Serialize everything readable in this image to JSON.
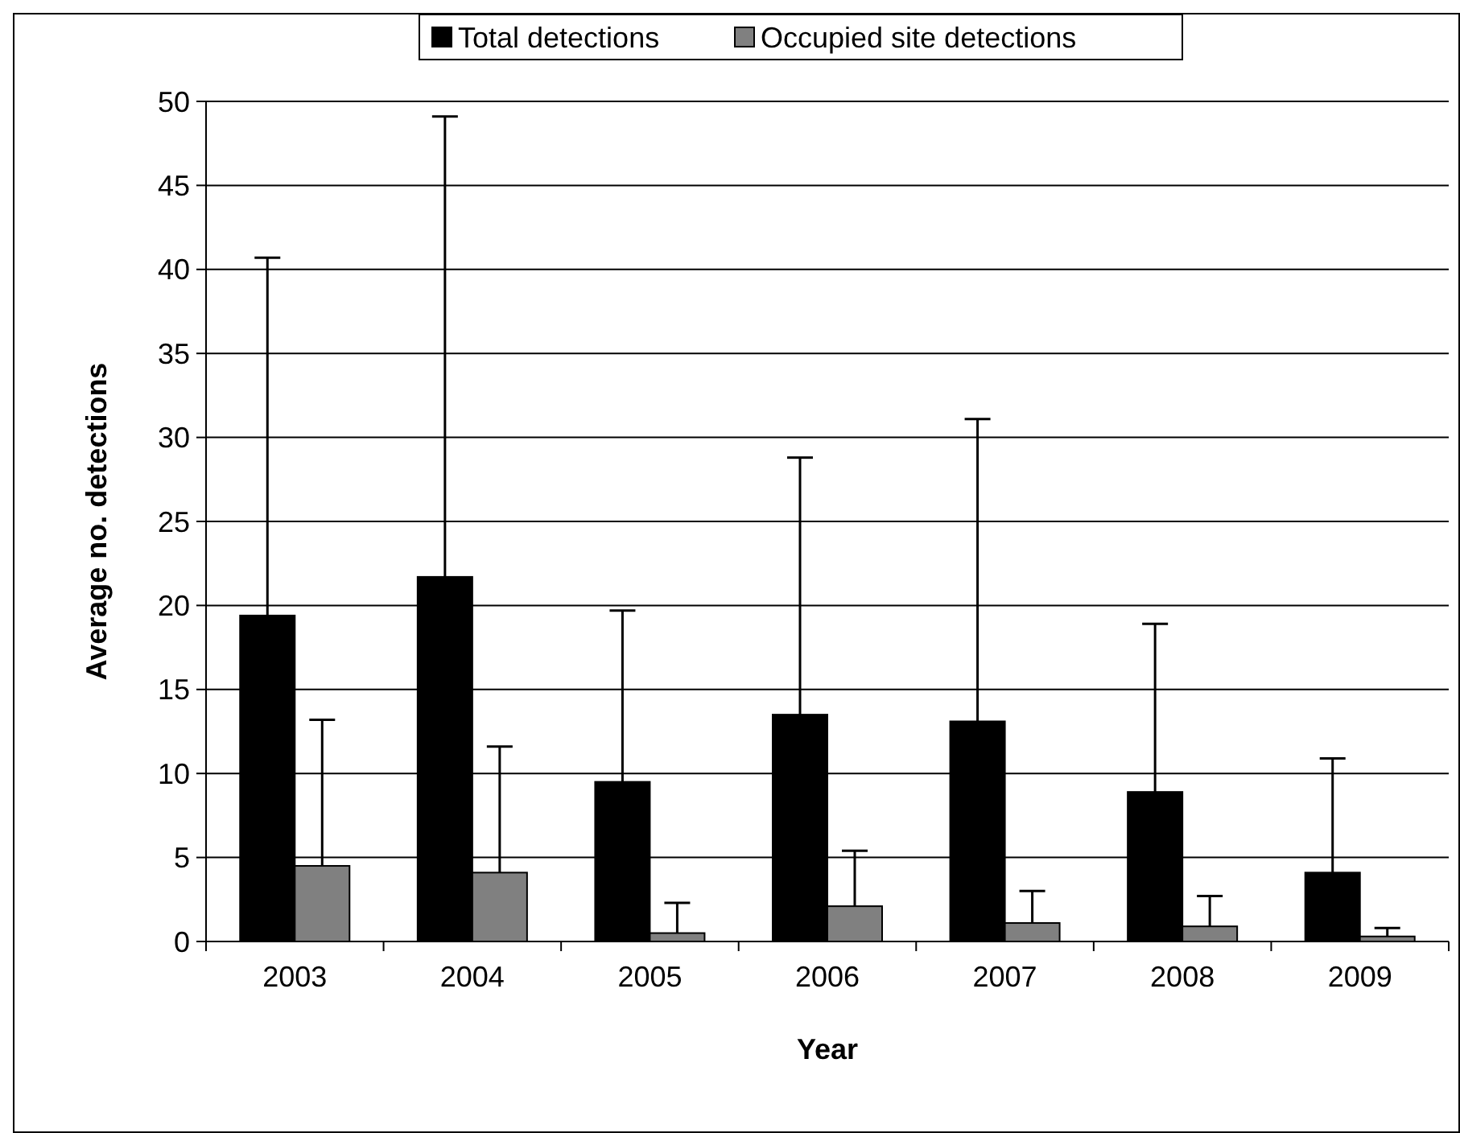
{
  "chart_data": {
    "type": "bar",
    "xlabel": "Year",
    "ylabel": "Average no. detections",
    "categories": [
      "2003",
      "2004",
      "2005",
      "2006",
      "2007",
      "2008",
      "2009"
    ],
    "series": [
      {
        "name": "Total detections",
        "color": "#000000",
        "values": [
          19.4,
          21.7,
          9.5,
          13.5,
          13.1,
          8.9,
          4.1
        ],
        "errors": [
          [
            19.4,
            40.7
          ],
          [
            21.7,
            49.1
          ],
          [
            9.5,
            19.7
          ],
          [
            13.5,
            28.8
          ],
          [
            13.1,
            31.1
          ],
          [
            8.9,
            18.9
          ],
          [
            4.1,
            10.9
          ]
        ]
      },
      {
        "name": "Occupied site detections",
        "color": "#808080",
        "values": [
          4.5,
          4.1,
          0.5,
          2.1,
          1.1,
          0.9,
          0.3
        ],
        "errors": [
          [
            4.5,
            13.2
          ],
          [
            4.1,
            11.6
          ],
          [
            0.5,
            2.3
          ],
          [
            2.1,
            5.4
          ],
          [
            1.1,
            3.0
          ],
          [
            0.9,
            2.7
          ],
          [
            0.3,
            0.8
          ]
        ]
      }
    ],
    "ylim": [
      0,
      50
    ],
    "yticks": [
      0,
      5,
      10,
      15,
      20,
      25,
      30,
      35,
      40,
      45,
      50
    ],
    "grid": "y",
    "legend": "top"
  }
}
